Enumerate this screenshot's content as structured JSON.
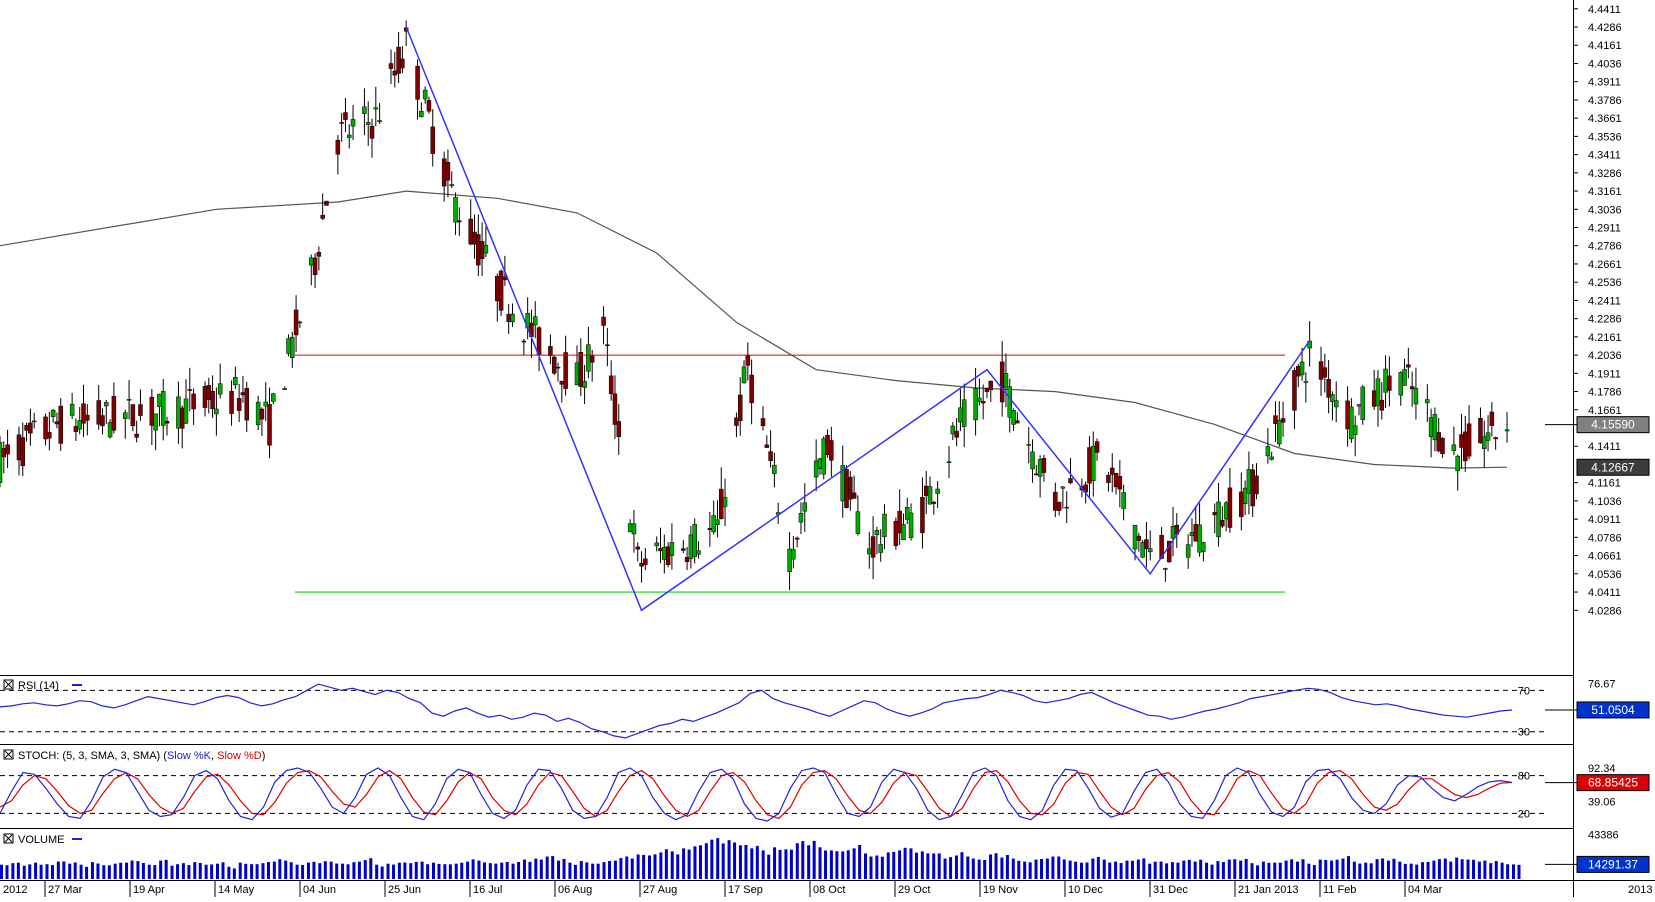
{
  "chart_data": {
    "type": "candlestick",
    "main_panel": {
      "price_axis_ticks": [
        "4.4411",
        "4.4286",
        "4.4161",
        "4.4036",
        "4.3911",
        "4.3786",
        "4.3661",
        "4.3536",
        "4.3411",
        "4.3286",
        "4.3161",
        "4.3036",
        "4.2911",
        "4.2786",
        "4.2661",
        "4.2536",
        "4.2411",
        "4.2286",
        "4.2161",
        "4.2036",
        "4.1911",
        "4.1786",
        "4.1661",
        "4.1411",
        "4.1161",
        "4.1036",
        "4.0911",
        "4.0786",
        "4.0661",
        "4.0536",
        "4.0411",
        "4.0286"
      ],
      "ylim": [
        4.0161,
        4.4461
      ],
      "last_price_label": "4.15590",
      "ma_price_label": "4.12667",
      "resistance_level": 4.2036,
      "support_level": 4.0411,
      "zigzag_points": [
        {
          "date": "2012-06-01",
          "price": 4.4286
        },
        {
          "date": "2012-08-02",
          "price": 4.0286
        },
        {
          "date": "2012-11-01",
          "price": 4.1936
        },
        {
          "date": "2012-12-14",
          "price": 4.0536
        },
        {
          "date": "2013-01-25",
          "price": 4.2136
        }
      ],
      "moving_average": [
        {
          "date": "2012-02-15",
          "value": 4.2786
        },
        {
          "date": "2012-04-12",
          "value": 4.3036
        },
        {
          "date": "2012-05-14",
          "value": 4.3086
        },
        {
          "date": "2012-06-01",
          "value": 4.3161
        },
        {
          "date": "2012-06-25",
          "value": 4.3111
        },
        {
          "date": "2012-07-16",
          "value": 4.3011
        },
        {
          "date": "2012-08-06",
          "value": 4.2736
        },
        {
          "date": "2012-08-27",
          "value": 4.2261
        },
        {
          "date": "2012-09-17",
          "value": 4.1936
        },
        {
          "date": "2012-10-08",
          "value": 4.1861
        },
        {
          "date": "2012-10-29",
          "value": 4.1811
        },
        {
          "date": "2012-11-19",
          "value": 4.1786
        },
        {
          "date": "2012-12-10",
          "value": 4.1711
        },
        {
          "date": "2012-12-31",
          "value": 4.1561
        },
        {
          "date": "2013-01-21",
          "value": 4.1361
        },
        {
          "date": "2013-02-11",
          "value": 4.1286
        },
        {
          "date": "2013-03-04",
          "value": 4.1261
        },
        {
          "date": "2013-03-18",
          "value": 4.1267
        }
      ],
      "price_path": [
        {
          "date": "2012-02-15",
          "price": 4.1311
        },
        {
          "date": "2012-03-01",
          "price": 4.1561
        },
        {
          "date": "2012-03-27",
          "price": 4.1636
        },
        {
          "date": "2012-04-19",
          "price": 4.1761
        },
        {
          "date": "2012-04-26",
          "price": 4.1561
        },
        {
          "date": "2012-05-07",
          "price": 4.2561
        },
        {
          "date": "2012-05-14",
          "price": 4.3536
        },
        {
          "date": "2012-05-24",
          "price": 4.3661
        },
        {
          "date": "2012-06-01",
          "price": 4.4161
        },
        {
          "date": "2012-06-13",
          "price": 4.3136
        },
        {
          "date": "2012-06-25",
          "price": 4.2511
        },
        {
          "date": "2012-07-05",
          "price": 4.2161
        },
        {
          "date": "2012-07-16",
          "price": 4.1861
        },
        {
          "date": "2012-07-23",
          "price": 4.2186
        },
        {
          "date": "2012-08-01",
          "price": 4.0611
        },
        {
          "date": "2012-08-10",
          "price": 4.0711
        },
        {
          "date": "2012-08-22",
          "price": 4.0836
        },
        {
          "date": "2012-08-30",
          "price": 4.1961
        },
        {
          "date": "2012-09-10",
          "price": 4.0686
        },
        {
          "date": "2012-09-20",
          "price": 4.1436
        },
        {
          "date": "2012-10-01",
          "price": 4.0736
        },
        {
          "date": "2012-10-15",
          "price": 4.0961
        },
        {
          "date": "2012-10-25",
          "price": 4.1561
        },
        {
          "date": "2012-11-05",
          "price": 4.1861
        },
        {
          "date": "2012-11-19",
          "price": 4.1036
        },
        {
          "date": "2012-12-01",
          "price": 4.1336
        },
        {
          "date": "2012-12-14",
          "price": 4.0636
        },
        {
          "date": "2012-12-28",
          "price": 4.0836
        },
        {
          "date": "2013-01-10",
          "price": 4.1136
        },
        {
          "date": "2013-01-25",
          "price": 4.2036
        },
        {
          "date": "2013-02-05",
          "price": 4.1611
        },
        {
          "date": "2013-02-18",
          "price": 4.1911
        },
        {
          "date": "2013-03-04",
          "price": 4.1361
        },
        {
          "date": "2013-03-18",
          "price": 4.1559
        }
      ]
    },
    "rsi_panel": {
      "title": "RSI (14)",
      "levels": [
        "70",
        "30"
      ],
      "axis_ticks": [
        "76.67"
      ],
      "value_label": "51.0504",
      "ylim": [
        22,
        80
      ],
      "values": [
        54,
        55,
        57,
        58,
        56,
        55,
        57,
        60,
        59,
        55,
        53,
        56,
        60,
        64,
        62,
        60,
        58,
        56,
        59,
        63,
        65,
        63,
        58,
        55,
        57,
        61,
        64,
        70,
        76,
        73,
        70,
        72,
        69,
        66,
        70,
        68,
        62,
        58,
        48,
        45,
        50,
        53,
        48,
        44,
        46,
        42,
        44,
        48,
        46,
        40,
        43,
        39,
        33,
        30,
        26,
        24,
        28,
        32,
        36,
        38,
        42,
        40,
        44,
        48,
        53,
        58,
        67,
        70,
        62,
        58,
        55,
        52,
        48,
        45,
        50,
        55,
        60,
        58,
        52,
        48,
        45,
        48,
        52,
        58,
        60,
        62,
        63,
        66,
        70,
        68,
        65,
        60,
        58,
        60,
        62,
        66,
        68,
        63,
        58,
        54,
        50,
        46,
        45,
        42,
        44,
        47,
        50,
        52,
        55,
        58,
        62,
        64,
        66,
        68,
        70,
        72,
        71,
        68,
        63,
        60,
        58,
        56,
        57,
        55,
        52,
        50,
        48,
        46,
        45,
        44,
        46,
        48,
        50,
        51
      ]
    },
    "stoch_panel": {
      "title": "STOCH: (5, 3, SMA, 3, SMA)",
      "series_labels": [
        "Slow %K",
        "Slow %D"
      ],
      "levels": [
        "80",
        "20"
      ],
      "axis_ticks": [
        "92.34",
        "39.06"
      ],
      "value_label": "68.85425",
      "ylim": [
        0,
        100
      ],
      "k_values": [
        20,
        55,
        85,
        82,
        60,
        35,
        15,
        12,
        40,
        78,
        90,
        85,
        55,
        25,
        15,
        18,
        45,
        80,
        88,
        75,
        40,
        15,
        10,
        30,
        70,
        88,
        92,
        85,
        60,
        30,
        20,
        45,
        82,
        92,
        80,
        45,
        15,
        10,
        35,
        75,
        90,
        85,
        50,
        20,
        12,
        25,
        65,
        90,
        88,
        60,
        25,
        12,
        15,
        45,
        85,
        92,
        80,
        45,
        20,
        10,
        18,
        55,
        85,
        90,
        75,
        35,
        12,
        8,
        20,
        60,
        88,
        92,
        85,
        50,
        20,
        15,
        30,
        70,
        90,
        85,
        60,
        25,
        10,
        15,
        50,
        85,
        92,
        80,
        40,
        15,
        10,
        25,
        65,
        90,
        88,
        60,
        28,
        14,
        20,
        55,
        85,
        90,
        70,
        35,
        15,
        12,
        40,
        80,
        92,
        85,
        50,
        22,
        15,
        30,
        70,
        88,
        90,
        75,
        45,
        25,
        20,
        35,
        65,
        80,
        78,
        60,
        45,
        40,
        50,
        62,
        70,
        72,
        69
      ],
      "d_values": [
        30,
        40,
        65,
        80,
        75,
        55,
        32,
        20,
        25,
        52,
        75,
        85,
        75,
        50,
        30,
        20,
        28,
        55,
        78,
        82,
        65,
        40,
        20,
        18,
        38,
        68,
        85,
        88,
        78,
        55,
        35,
        30,
        50,
        78,
        88,
        75,
        45,
        22,
        18,
        40,
        70,
        85,
        75,
        45,
        25,
        18,
        35,
        65,
        85,
        80,
        55,
        28,
        15,
        25,
        55,
        80,
        88,
        75,
        48,
        25,
        15,
        25,
        55,
        80,
        85,
        70,
        40,
        18,
        12,
        30,
        65,
        85,
        88,
        75,
        48,
        25,
        20,
        38,
        68,
        85,
        80,
        55,
        28,
        15,
        28,
        60,
        85,
        88,
        70,
        40,
        20,
        18,
        35,
        68,
        85,
        82,
        55,
        30,
        18,
        28,
        58,
        80,
        85,
        70,
        40,
        20,
        18,
        42,
        75,
        88,
        80,
        52,
        28,
        20,
        35,
        68,
        85,
        88,
        75,
        50,
        30,
        25,
        35,
        58,
        75,
        75,
        62,
        50,
        45,
        50,
        60,
        68,
        69
      ]
    },
    "volume_panel": {
      "title": "VOLUME",
      "axis_ticks": [
        "43386"
      ],
      "value_label": "14291.37",
      "ymax": 46000,
      "values": [
        14000,
        15500,
        13000,
        16000,
        14500,
        17000,
        15000,
        14000,
        16500,
        13500,
        15000,
        16000,
        17500,
        14000,
        18000,
        13000,
        15500,
        16500,
        14000,
        15000,
        12000,
        16000,
        14500,
        15500,
        17000,
        18000,
        14000,
        16000,
        15500,
        17000,
        15000,
        16500,
        18500,
        14000,
        15000,
        16000,
        15500,
        17000,
        16000,
        14500,
        15000,
        17000,
        18000,
        15500,
        16000,
        15000,
        19000,
        20000,
        22000,
        18000,
        16000,
        17500,
        15000,
        16500,
        18000,
        22000,
        24000,
        23000,
        26000,
        27000,
        30000,
        32000,
        35000,
        40000,
        38000,
        33000,
        30000,
        28000,
        31000,
        29000,
        35000,
        33000,
        31000,
        28000,
        27000,
        30000,
        25000,
        23000,
        26000,
        28000,
        30000,
        27000,
        25000,
        20000,
        23000,
        22000,
        19000,
        24000,
        21000,
        20000,
        17000,
        19000,
        20000,
        22000,
        18000,
        16000,
        20000,
        19000,
        17000,
        18000,
        19000,
        15000,
        17000,
        16500,
        18000,
        17000,
        16000,
        17500,
        19000,
        18000,
        15500,
        17000,
        16000,
        18000,
        17000,
        15000,
        19000,
        18000,
        20000,
        17000,
        16000,
        19500,
        18000,
        17000,
        15000,
        16500,
        18000,
        20000,
        21000,
        19000,
        17000,
        15500,
        16000,
        14291
      ]
    },
    "x_axis_labels": [
      "2012",
      "27 Mar",
      "19 Apr",
      "14 May",
      "04 Jun",
      "25 Jun",
      "16 Jul",
      "06 Aug",
      "27 Aug",
      "17 Sep",
      "08 Oct",
      "29 Oct",
      "19 Nov",
      "10 Dec",
      "31 Dec",
      "21 Jan 2013",
      "11 Feb",
      "04 Mar",
      "2013"
    ],
    "colors": {
      "up_candle": "#00aa00",
      "down_candle": "#800000",
      "wick": "#000000",
      "zigzag": "#3333ff",
      "resistance": "#dd0000",
      "support": "#00dd00",
      "moving_average": "#555555",
      "rsi": "#2222dd",
      "stoch_k": "#2222dd",
      "stoch_d": "#dd0000",
      "volume": "#0000cc",
      "last_price_tag": "#808080",
      "ma_tag": "#3c3c3c",
      "rsi_tag": "#0033cc",
      "stoch_tag": "#dd0000",
      "volume_tag": "#0033cc"
    }
  }
}
